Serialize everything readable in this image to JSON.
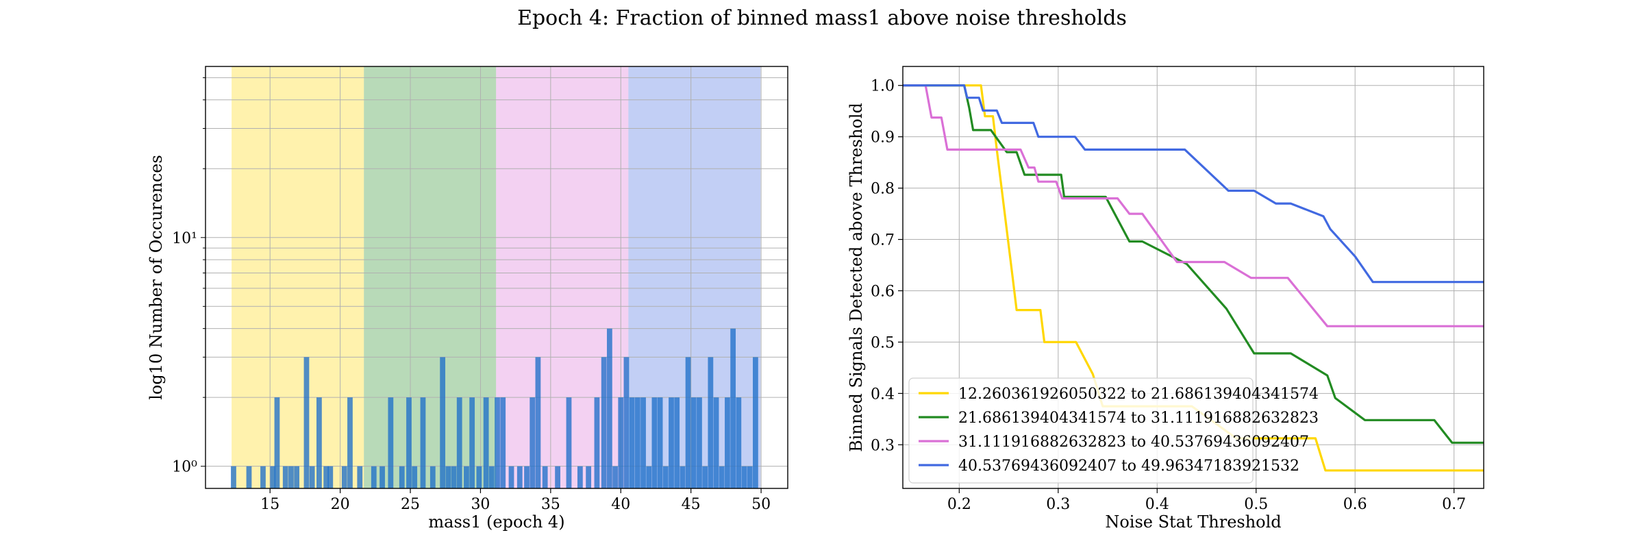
{
  "figure_title": "Epoch 4: Fraction of binned mass1 above noise thresholds",
  "chart_data": [
    {
      "type": "bar",
      "subtype": "histogram",
      "xlabel": "mass1 (epoch 4)",
      "ylabel": "log10 Number of Occurences",
      "yscale": "log",
      "xlim": [
        10.4,
        51.9
      ],
      "ylim": [
        0.8,
        56
      ],
      "x_ticks": [
        15,
        20,
        25,
        30,
        35,
        40,
        45,
        50
      ],
      "y_ticks": [
        {
          "value": 1,
          "label": "10⁰"
        },
        {
          "value": 10,
          "label": "10¹"
        }
      ],
      "grid": true,
      "bar_color": "#1f6fc9",
      "bar_opacity": 0.78,
      "bands": [
        {
          "from": 12.26,
          "to": 21.69,
          "color": "#ffd700"
        },
        {
          "from": 21.69,
          "to": 31.11,
          "color": "#228b22"
        },
        {
          "from": 31.11,
          "to": 40.54,
          "color": "#da70d6"
        },
        {
          "from": 40.54,
          "to": 49.96,
          "color": "#4169e1"
        }
      ],
      "bin_width": 0.38,
      "bins": [
        {
          "x": 12.4,
          "count": 1
        },
        {
          "x": 13.5,
          "count": 1
        },
        {
          "x": 14.5,
          "count": 1
        },
        {
          "x": 15.2,
          "count": 1
        },
        {
          "x": 15.5,
          "count": 2
        },
        {
          "x": 16.1,
          "count": 1
        },
        {
          "x": 16.5,
          "count": 1
        },
        {
          "x": 16.9,
          "count": 1
        },
        {
          "x": 17.6,
          "count": 3
        },
        {
          "x": 18.0,
          "count": 1
        },
        {
          "x": 18.5,
          "count": 2
        },
        {
          "x": 19.0,
          "count": 1
        },
        {
          "x": 19.3,
          "count": 1
        },
        {
          "x": 20.3,
          "count": 1
        },
        {
          "x": 20.7,
          "count": 2
        },
        {
          "x": 21.4,
          "count": 1
        },
        {
          "x": 22.4,
          "count": 1
        },
        {
          "x": 23.0,
          "count": 1
        },
        {
          "x": 23.6,
          "count": 2
        },
        {
          "x": 24.4,
          "count": 1
        },
        {
          "x": 24.9,
          "count": 2
        },
        {
          "x": 25.3,
          "count": 1
        },
        {
          "x": 25.9,
          "count": 2
        },
        {
          "x": 26.6,
          "count": 1
        },
        {
          "x": 27.3,
          "count": 3
        },
        {
          "x": 27.7,
          "count": 1
        },
        {
          "x": 28.1,
          "count": 1
        },
        {
          "x": 28.5,
          "count": 2
        },
        {
          "x": 29.0,
          "count": 1
        },
        {
          "x": 29.4,
          "count": 2
        },
        {
          "x": 29.9,
          "count": 1
        },
        {
          "x": 30.4,
          "count": 2
        },
        {
          "x": 30.8,
          "count": 1
        },
        {
          "x": 31.2,
          "count": 2
        },
        {
          "x": 31.6,
          "count": 2
        },
        {
          "x": 32.2,
          "count": 1
        },
        {
          "x": 32.8,
          "count": 1
        },
        {
          "x": 33.3,
          "count": 1
        },
        {
          "x": 33.7,
          "count": 2
        },
        {
          "x": 34.1,
          "count": 3
        },
        {
          "x": 34.6,
          "count": 1
        },
        {
          "x": 35.5,
          "count": 1
        },
        {
          "x": 36.3,
          "count": 2
        },
        {
          "x": 37.1,
          "count": 1
        },
        {
          "x": 37.7,
          "count": 1
        },
        {
          "x": 38.3,
          "count": 2
        },
        {
          "x": 38.8,
          "count": 3
        },
        {
          "x": 39.2,
          "count": 4
        },
        {
          "x": 39.6,
          "count": 1
        },
        {
          "x": 40.0,
          "count": 2
        },
        {
          "x": 40.4,
          "count": 3
        },
        {
          "x": 40.8,
          "count": 2
        },
        {
          "x": 41.2,
          "count": 2
        },
        {
          "x": 41.6,
          "count": 2
        },
        {
          "x": 42.0,
          "count": 1
        },
        {
          "x": 42.4,
          "count": 2
        },
        {
          "x": 42.8,
          "count": 2
        },
        {
          "x": 43.2,
          "count": 1
        },
        {
          "x": 43.6,
          "count": 2
        },
        {
          "x": 44.0,
          "count": 2
        },
        {
          "x": 44.4,
          "count": 1
        },
        {
          "x": 44.8,
          "count": 3
        },
        {
          "x": 45.2,
          "count": 2
        },
        {
          "x": 45.6,
          "count": 2
        },
        {
          "x": 46.0,
          "count": 1
        },
        {
          "x": 46.4,
          "count": 3
        },
        {
          "x": 46.8,
          "count": 2
        },
        {
          "x": 47.2,
          "count": 1
        },
        {
          "x": 47.6,
          "count": 2
        },
        {
          "x": 48.0,
          "count": 4
        },
        {
          "x": 48.4,
          "count": 2
        },
        {
          "x": 48.8,
          "count": 1
        },
        {
          "x": 49.2,
          "count": 1
        },
        {
          "x": 49.6,
          "count": 3
        }
      ]
    },
    {
      "type": "line",
      "xlabel": "Noise Stat Threshold",
      "ylabel": "Binned Signals Detected above Threshold",
      "xlim": [
        0.143,
        0.73
      ],
      "ylim": [
        0.215,
        1.037
      ],
      "x_ticks": [
        0.2,
        0.3,
        0.4,
        0.5,
        0.6,
        0.7
      ],
      "y_ticks": [
        0.3,
        0.4,
        0.5,
        0.6,
        0.7,
        0.8,
        0.9,
        1.0
      ],
      "grid": true,
      "legend_position": "lower-left",
      "series": [
        {
          "name": "12.260361926050322 to 21.686139404341574",
          "color": "#ffd700",
          "points": [
            [
              0.143,
              1.0
            ],
            [
              0.222,
              1.0
            ],
            [
              0.226,
              0.94
            ],
            [
              0.234,
              0.94
            ],
            [
              0.238,
              0.875
            ],
            [
              0.242,
              0.8125
            ],
            [
              0.246,
              0.75
            ],
            [
              0.25,
              0.6875
            ],
            [
              0.254,
              0.625
            ],
            [
              0.258,
              0.5625
            ],
            [
              0.282,
              0.5625
            ],
            [
              0.286,
              0.5
            ],
            [
              0.318,
              0.5
            ],
            [
              0.335,
              0.4375
            ],
            [
              0.345,
              0.375
            ],
            [
              0.435,
              0.375
            ],
            [
              0.48,
              0.3125
            ],
            [
              0.56,
              0.3125
            ],
            [
              0.57,
              0.25
            ],
            [
              0.73,
              0.25
            ]
          ]
        },
        {
          "name": "21.686139404341574 to 31.111916882632823",
          "color": "#228b22",
          "points": [
            [
              0.143,
              1.0
            ],
            [
              0.205,
              1.0
            ],
            [
              0.21,
              0.957
            ],
            [
              0.214,
              0.913
            ],
            [
              0.232,
              0.913
            ],
            [
              0.248,
              0.87
            ],
            [
              0.258,
              0.87
            ],
            [
              0.266,
              0.826
            ],
            [
              0.303,
              0.826
            ],
            [
              0.306,
              0.783
            ],
            [
              0.348,
              0.783
            ],
            [
              0.372,
              0.696
            ],
            [
              0.385,
              0.696
            ],
            [
              0.43,
              0.652
            ],
            [
              0.47,
              0.565
            ],
            [
              0.498,
              0.478
            ],
            [
              0.535,
              0.478
            ],
            [
              0.572,
              0.435
            ],
            [
              0.58,
              0.391
            ],
            [
              0.61,
              0.348
            ],
            [
              0.68,
              0.348
            ],
            [
              0.698,
              0.304
            ],
            [
              0.73,
              0.304
            ]
          ]
        },
        {
          "name": "31.111916882632823 to 40.53769436092407",
          "color": "#da70d6",
          "points": [
            [
              0.143,
              1.0
            ],
            [
              0.166,
              1.0
            ],
            [
              0.172,
              0.9375
            ],
            [
              0.182,
              0.9375
            ],
            [
              0.188,
              0.875
            ],
            [
              0.245,
              0.875
            ],
            [
              0.262,
              0.875
            ],
            [
              0.27,
              0.84
            ],
            [
              0.276,
              0.84
            ],
            [
              0.28,
              0.8125
            ],
            [
              0.298,
              0.8125
            ],
            [
              0.304,
              0.78
            ],
            [
              0.36,
              0.78
            ],
            [
              0.372,
              0.75
            ],
            [
              0.385,
              0.75
            ],
            [
              0.42,
              0.656
            ],
            [
              0.468,
              0.656
            ],
            [
              0.495,
              0.625
            ],
            [
              0.532,
              0.625
            ],
            [
              0.572,
              0.531
            ],
            [
              0.73,
              0.531
            ]
          ]
        },
        {
          "name": "40.53769436092407 to 49.96347183921532",
          "color": "#4169e1",
          "points": [
            [
              0.143,
              1.0
            ],
            [
              0.205,
              1.0
            ],
            [
              0.208,
              0.976
            ],
            [
              0.22,
              0.976
            ],
            [
              0.224,
              0.951
            ],
            [
              0.238,
              0.951
            ],
            [
              0.243,
              0.927
            ],
            [
              0.275,
              0.927
            ],
            [
              0.28,
              0.9
            ],
            [
              0.317,
              0.9
            ],
            [
              0.327,
              0.875
            ],
            [
              0.428,
              0.875
            ],
            [
              0.472,
              0.795
            ],
            [
              0.498,
              0.795
            ],
            [
              0.52,
              0.77
            ],
            [
              0.535,
              0.77
            ],
            [
              0.568,
              0.745
            ],
            [
              0.575,
              0.72
            ],
            [
              0.6,
              0.667
            ],
            [
              0.618,
              0.617
            ],
            [
              0.73,
              0.617
            ]
          ]
        }
      ]
    }
  ]
}
